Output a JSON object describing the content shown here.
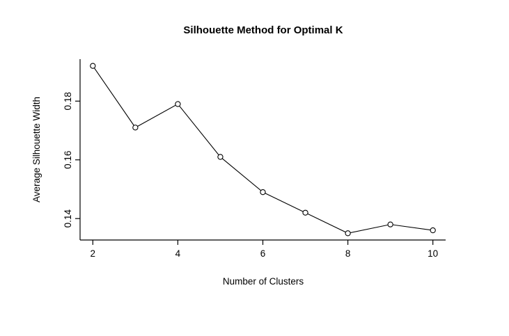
{
  "chart_data": {
    "type": "line",
    "title": "Silhouette Method for Optimal K",
    "xlabel": "Number of Clusters",
    "ylabel": "Average Silhouette Width",
    "x": [
      2,
      3,
      4,
      5,
      6,
      7,
      8,
      9,
      10
    ],
    "y": [
      0.192,
      0.171,
      0.179,
      0.161,
      0.149,
      0.142,
      0.135,
      0.138,
      0.136
    ],
    "xlim": [
      1.7,
      10.3
    ],
    "ylim": [
      0.1327,
      0.1943
    ],
    "xticks": [
      "2",
      "4",
      "6",
      "8",
      "10"
    ],
    "yticks": [
      "0.14",
      "0.16",
      "0.18"
    ],
    "marker": "open-circle",
    "line_color": "#000000",
    "marker_fill": "#ffffff",
    "axis_color": "#000000",
    "background": "#ffffff",
    "legend": "none",
    "grid": "off"
  }
}
